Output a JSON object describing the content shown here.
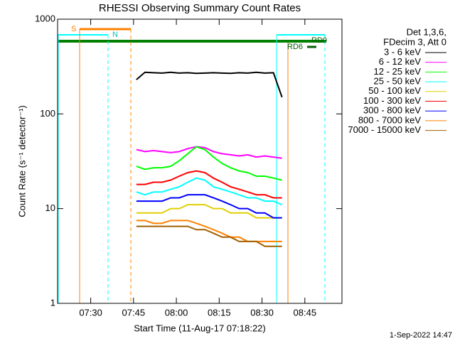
{
  "chart_data": {
    "type": "line",
    "title": "RHESSI Observing Summary Count Rates",
    "x_label": "Start Time (11-Aug-17 07:18:22)",
    "y_label": "Count Rate (s⁻¹ detector⁻¹)",
    "legend_header": [
      "Det 1,3,6,",
      "FDecim 3, Att 0"
    ],
    "flag_labels": [
      "S",
      "N",
      "RD6",
      "RD0"
    ],
    "footer": "1-Sep-2022 14:47",
    "log_y": true,
    "xlim": [
      438.4,
      538
    ],
    "ylim": [
      1,
      1000
    ],
    "xticks": [
      {
        "value": 450,
        "label": "07:30"
      },
      {
        "value": 465,
        "label": "07:45"
      },
      {
        "value": 480,
        "label": "08:00"
      },
      {
        "value": 495,
        "label": "08:15"
      },
      {
        "value": 510,
        "label": "08:30"
      },
      {
        "value": 525,
        "label": "08:45"
      }
    ],
    "yticks": [
      1,
      10,
      100,
      1000
    ],
    "x": [
      466,
      469,
      472,
      475,
      478,
      481,
      484,
      487,
      490,
      493,
      496,
      499,
      502,
      505,
      508,
      511,
      514,
      517
    ],
    "series": [
      {
        "name": "3 - 6 keV",
        "color": "#000000",
        "values": [
          230,
          275,
          272,
          270,
          275,
          270,
          272,
          268,
          270,
          272,
          270,
          268,
          272,
          270,
          275,
          270,
          272,
          150
        ]
      },
      {
        "name": "6 - 12 keV",
        "color": "#ff00ff",
        "values": [
          42,
          40,
          41,
          40,
          39,
          40,
          43,
          45,
          44,
          40,
          38,
          37,
          36,
          37,
          35,
          36,
          35,
          34
        ]
      },
      {
        "name": "12 - 25 keV",
        "color": "#00ff00",
        "values": [
          28,
          26,
          27,
          27,
          28,
          32,
          38,
          45,
          42,
          35,
          30,
          27,
          25,
          24,
          22,
          22,
          21,
          20
        ]
      },
      {
        "name": "25 - 50 keV",
        "color": "#00ffff",
        "values": [
          15,
          14,
          15,
          15,
          16,
          17,
          19,
          21,
          20,
          17,
          16,
          15,
          14,
          13,
          13,
          12,
          12,
          11
        ]
      },
      {
        "name": "50 - 100 keV",
        "color": "#e0d000",
        "values": [
          9,
          9,
          9,
          9,
          10,
          10,
          11,
          11,
          11,
          10,
          10,
          9,
          9,
          9,
          8,
          8,
          8,
          8
        ]
      },
      {
        "name": "100 - 300 keV",
        "color": "#ff0000",
        "values": [
          18,
          18,
          19,
          19,
          20,
          22,
          24,
          25,
          24,
          21,
          19,
          17,
          16,
          15,
          14,
          14,
          13,
          13
        ]
      },
      {
        "name": "300 - 800 keV",
        "color": "#0000ff",
        "values": [
          12,
          12,
          12,
          12,
          13,
          13,
          14,
          14,
          14,
          13,
          12,
          11,
          10,
          10,
          9,
          9,
          8,
          8
        ]
      },
      {
        "name": "800 - 7000 keV",
        "color": "#ff8000",
        "values": [
          7.5,
          7.5,
          7,
          7,
          7.5,
          7.5,
          7.5,
          7,
          6.5,
          6,
          5.5,
          5,
          5,
          4.5,
          4.5,
          4.5,
          4.5,
          4.5
        ]
      },
      {
        "name": "7000 - 15000 keV",
        "color": "#a06000",
        "values": [
          6.5,
          6.5,
          6.5,
          6.5,
          6.5,
          6.5,
          6.5,
          6,
          6,
          5.5,
          5,
          5,
          4.5,
          4.5,
          4.5,
          4,
          4,
          4
        ]
      }
    ]
  }
}
